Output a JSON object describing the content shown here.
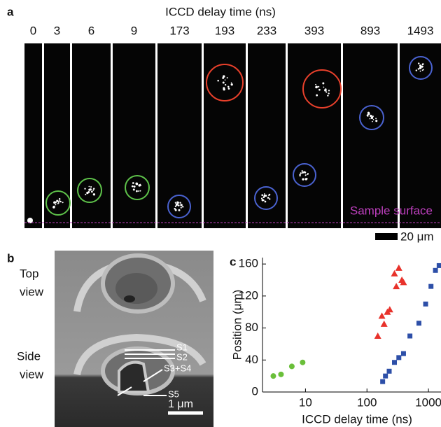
{
  "panel_a": {
    "label": "a",
    "title": "ICCD delay time (ns)",
    "delays": [
      "0",
      "3",
      "6",
      "9",
      "173",
      "193",
      "233",
      "393",
      "893",
      "1493"
    ],
    "surface_label": "Sample surface",
    "scale_label": "20 μm"
  },
  "panel_b": {
    "label": "b",
    "top_view": [
      "Top",
      "view"
    ],
    "side_view": [
      "Side",
      "view"
    ],
    "layers": [
      "S1",
      "S2",
      "S3+S4",
      "S5"
    ],
    "scale_label": "1 μm"
  },
  "chart_data": {
    "type": "scatter",
    "label": "c",
    "x_label": "ICCD delay time (ns)",
    "y_label": "Position (μm)",
    "xscale": "log",
    "xlim": [
      2,
      1600
    ],
    "xticks": [
      10,
      100,
      1000
    ],
    "ylim": [
      0,
      168
    ],
    "yticks": [
      0,
      40,
      80,
      120,
      160
    ],
    "series": [
      {
        "color": "#6abf3a",
        "marker": "circle",
        "x": [
          3,
          4,
          6,
          9
        ],
        "values": [
          20,
          22,
          32,
          37
        ]
      },
      {
        "color": "#e8322b",
        "marker": "triangle",
        "x": [
          150,
          175,
          190,
          215,
          235,
          280,
          300,
          330,
          370,
          393
        ],
        "values": [
          70,
          95,
          85,
          100,
          103,
          148,
          132,
          155,
          140,
          137
        ]
      },
      {
        "color": "#2d4fa8",
        "marker": "square",
        "x": [
          180,
          200,
          230,
          280,
          330,
          393,
          500,
          700,
          900,
          1100,
          1300,
          1493
        ],
        "values": [
          13,
          20,
          26,
          37,
          43,
          48,
          70,
          86,
          110,
          132,
          152,
          158
        ]
      }
    ]
  }
}
